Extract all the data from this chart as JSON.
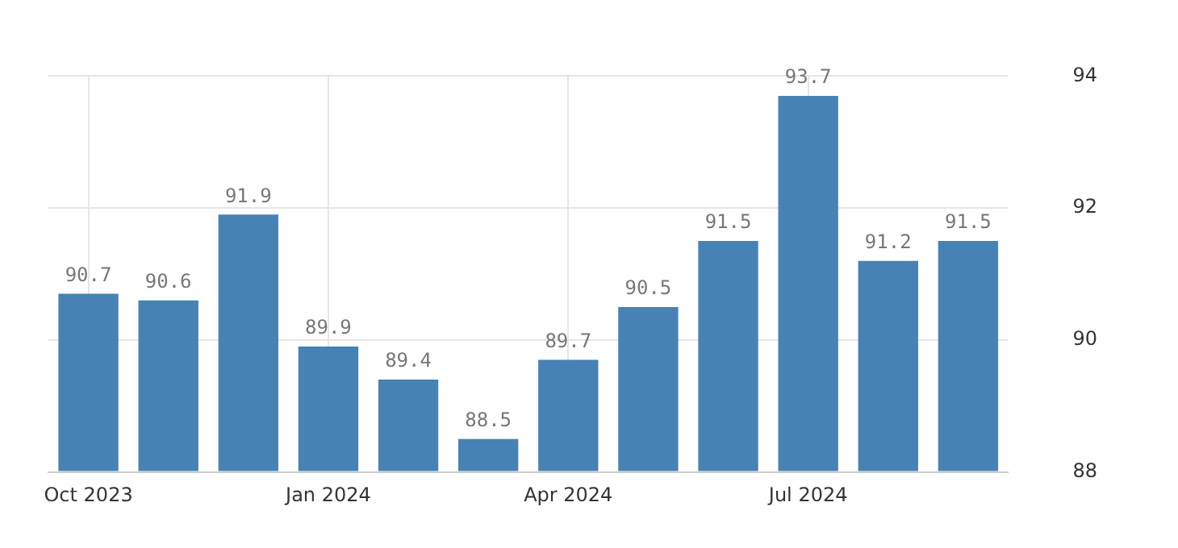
{
  "chart_data": {
    "type": "bar",
    "categories": [
      "Oct 2023",
      null,
      null,
      "Jan 2024",
      null,
      null,
      "Apr 2024",
      null,
      null,
      "Jul 2024",
      null,
      null
    ],
    "values": [
      90.7,
      90.6,
      91.9,
      89.9,
      89.4,
      88.5,
      89.7,
      90.5,
      91.5,
      93.7,
      91.2,
      91.5
    ],
    "color": "#4682b4",
    "ylim": [
      88,
      94
    ],
    "yticks": [
      88,
      90,
      92,
      94
    ],
    "grid": true,
    "data_labels": true
  }
}
